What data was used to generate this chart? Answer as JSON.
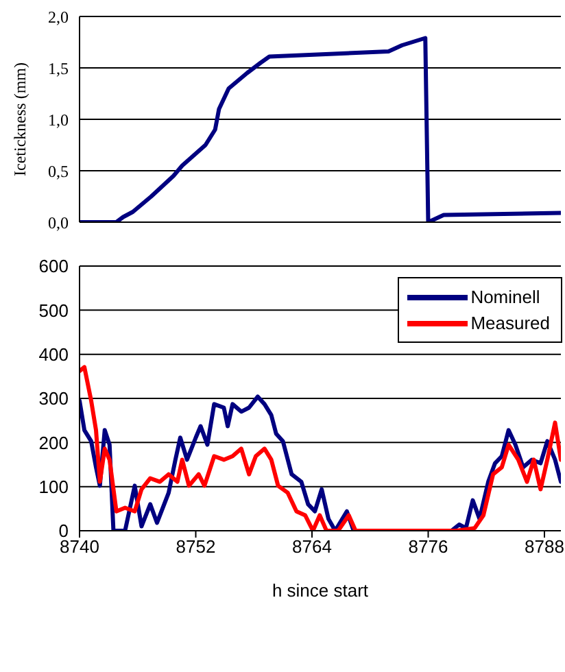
{
  "chart_data": [
    {
      "type": "line",
      "ylabel": "Icetickness (mm)",
      "color": "#000080",
      "x": [
        8740,
        8743.8,
        8744.5,
        8745.5,
        8747.4,
        8749.7,
        8750.6,
        8753.0,
        8754.0,
        8754.4,
        8755.4,
        8757.3,
        8758.7,
        8759.6,
        8771.9,
        8773.3,
        8775.7,
        8776.0,
        8777.6,
        8789.7
      ],
      "values": [
        0,
        0,
        0.05,
        0.1,
        0.25,
        0.45,
        0.55,
        0.75,
        0.9,
        1.1,
        1.3,
        1.45,
        1.55,
        1.61,
        1.66,
        1.72,
        1.79,
        0,
        0.07,
        0.09
      ],
      "xlim": [
        8740,
        8789.7
      ],
      "ylim": [
        0,
        2
      ],
      "yticks": [
        {
          "value": 0,
          "label": "0,0"
        },
        {
          "value": 0.5,
          "label": "0,5"
        },
        {
          "value": 1,
          "label": "1,0"
        },
        {
          "value": 1.5,
          "label": "1,5"
        },
        {
          "value": 2,
          "label": "2,0"
        }
      ],
      "grid": "y",
      "tick_labels": "y"
    },
    {
      "type": "line",
      "xlabel": "h since start",
      "legend": "top right",
      "grid": "y",
      "xlim": [
        8740,
        8789.7
      ],
      "xticks": [
        8740,
        8752,
        8764,
        8776,
        8788
      ],
      "ylim": [
        0,
        600
      ],
      "yticks": [
        0,
        100,
        200,
        300,
        400,
        500,
        600
      ],
      "series": [
        {
          "name": "Nominell",
          "color": "#000080",
          "x": [
            8740,
            8740.5,
            8741.2,
            8741.7,
            8742.1,
            8742.6,
            8743.1,
            8743.5,
            8744.7,
            8745.7,
            8746.4,
            8747.3,
            8748.0,
            8749.2,
            8749.9,
            8750.4,
            8751.1,
            8752.0,
            8752.5,
            8753.2,
            8753.9,
            8754.9,
            8755.3,
            8755.8,
            8756.7,
            8757.5,
            8758.4,
            8759.1,
            8759.8,
            8760.3,
            8761.0,
            8761.9,
            8762.9,
            8763.6,
            8764.3,
            8765.0,
            8765.7,
            8766.4,
            8767.6,
            8768.3,
            8778.4,
            8779.2,
            8779.9,
            8780.6,
            8781.3,
            8782.2,
            8782.9,
            8783.6,
            8784.3,
            8785.0,
            8785.8,
            8786.7,
            8787.6,
            8788.3,
            8789.1,
            8789.7
          ],
          "values": [
            295,
            228,
            203,
            144,
            102,
            228,
            195,
            0,
            0,
            102,
            10,
            60,
            18,
            86,
            161,
            211,
            161,
            211,
            237,
            195,
            287,
            279,
            237,
            287,
            270,
            279,
            304,
            287,
            262,
            220,
            203,
            128,
            111,
            60,
            44,
            94,
            27,
            0,
            44,
            0,
            0,
            14,
            6,
            69,
            27,
            111,
            153,
            169,
            228,
            195,
            144,
            161,
            153,
            203,
            161,
            111
          ]
        },
        {
          "name": "Measured",
          "color": "#ff0000",
          "x": [
            8740,
            8740.5,
            8741.2,
            8741.7,
            8742.1,
            8742.6,
            8743.1,
            8743.8,
            8744.7,
            8745.7,
            8746.4,
            8747.3,
            8748.3,
            8749.2,
            8750.1,
            8750.6,
            8751.3,
            8752.3,
            8752.9,
            8753.9,
            8754.9,
            8755.8,
            8756.7,
            8757.5,
            8758.2,
            8759.1,
            8759.8,
            8760.5,
            8761.5,
            8762.4,
            8763.3,
            8764.1,
            8764.8,
            8765.5,
            8766.7,
            8767.8,
            8768.5,
            8778.9,
            8780.8,
            8781.7,
            8782.7,
            8783.6,
            8784.3,
            8785.3,
            8786.2,
            8786.9,
            8787.6,
            8788.3,
            8789.1,
            8789.7
          ],
          "values": [
            362,
            371,
            295,
            228,
            111,
            186,
            161,
            44,
            52,
            44,
            94,
            119,
            111,
            128,
            111,
            161,
            102,
            128,
            102,
            169,
            161,
            169,
            186,
            128,
            169,
            186,
            161,
            102,
            86,
            44,
            35,
            0,
            35,
            0,
            0,
            35,
            0,
            0,
            6,
            35,
            128,
            144,
            195,
            161,
            111,
            161,
            94,
            161,
            245,
            161
          ]
        }
      ]
    }
  ]
}
